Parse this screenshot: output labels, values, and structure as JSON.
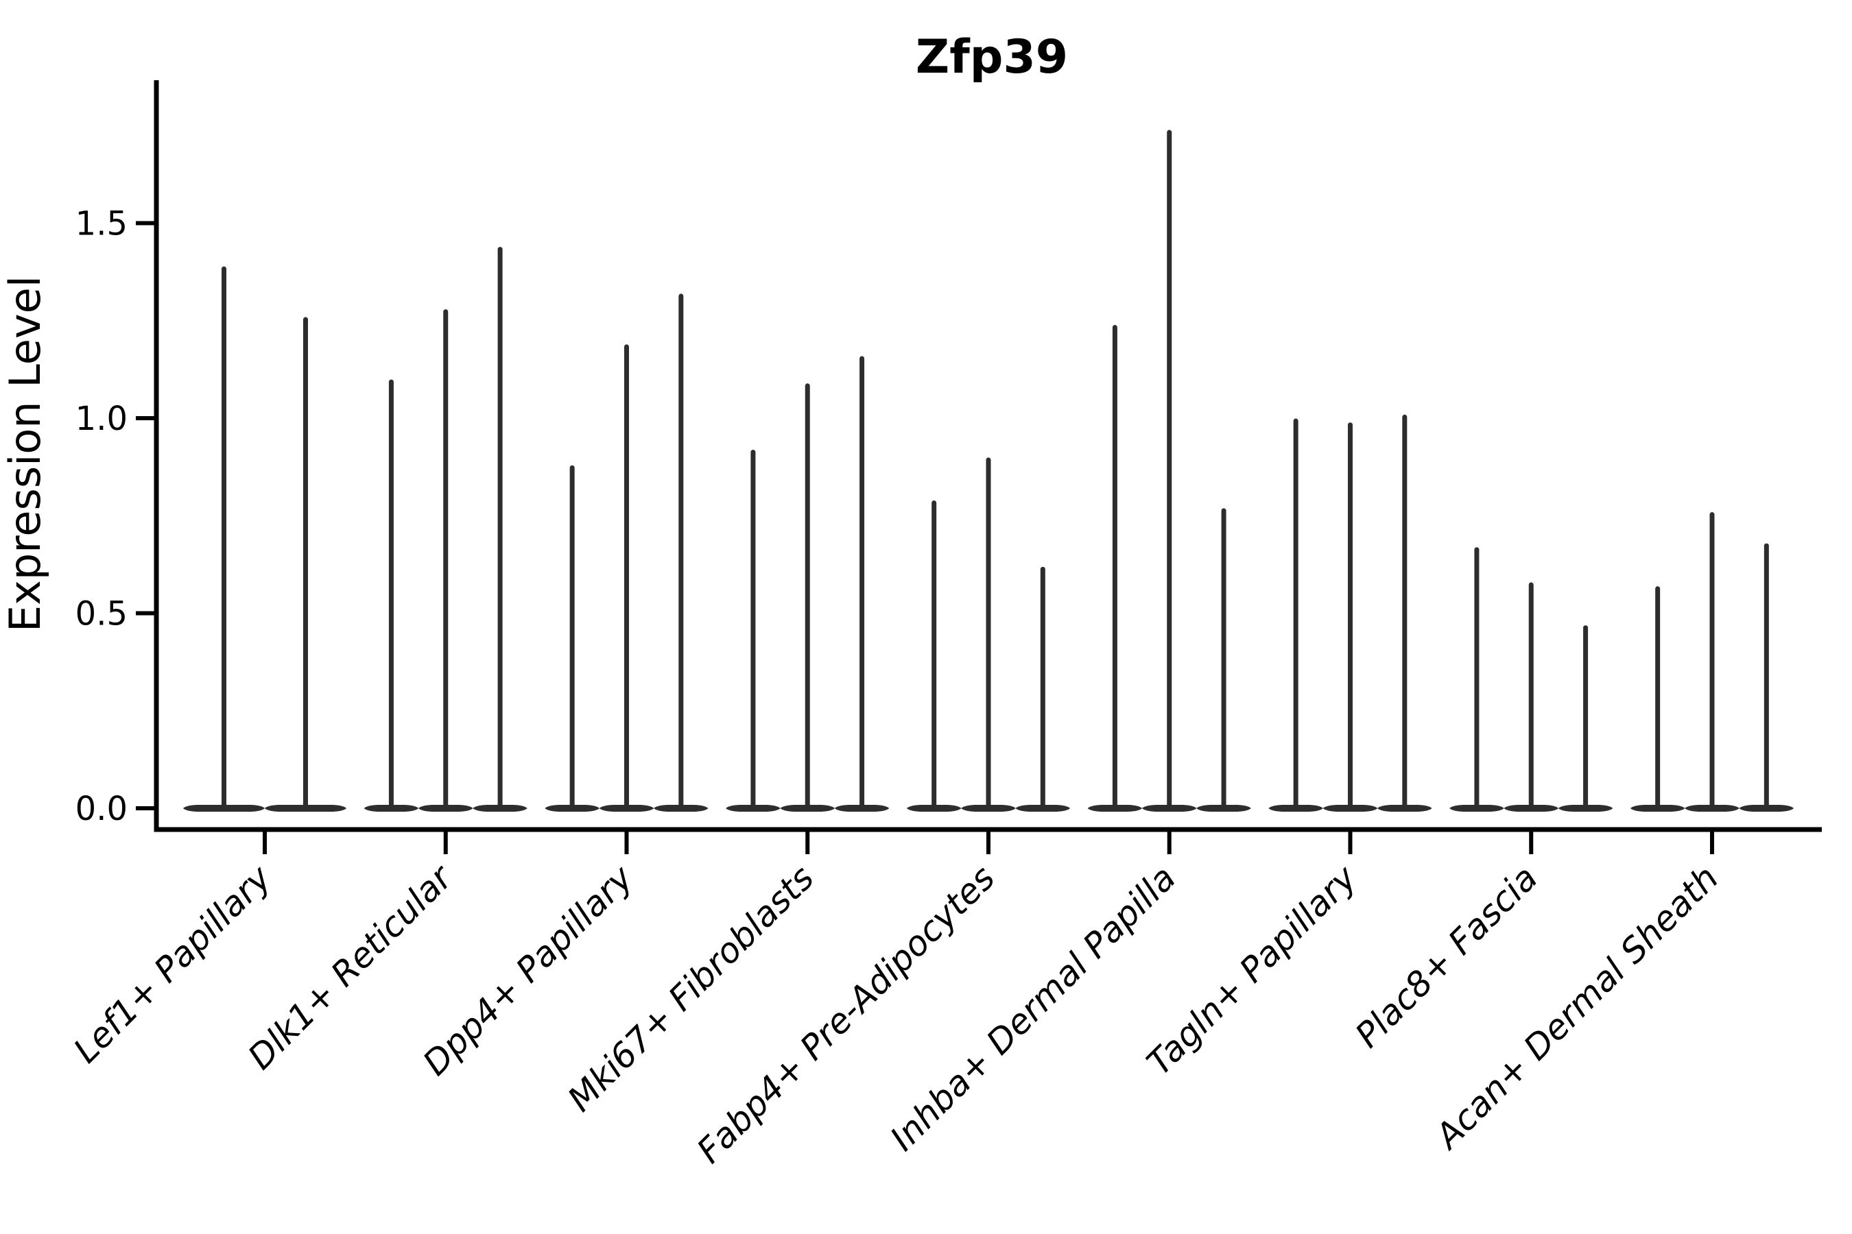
{
  "figure": {
    "title": "Zfp39",
    "y_axis_label": "Expression Level"
  },
  "chart_data": {
    "type": "violin",
    "title": "Zfp39",
    "xlabel": "",
    "ylabel": "Expression Level",
    "ylim": [
      0,
      1.87
    ],
    "yticks": [
      0.0,
      0.5,
      1.0,
      1.5
    ],
    "ytick_labels": [
      "0.0",
      "0.5",
      "1.0",
      "1.5"
    ],
    "grid": false,
    "legend_position": "none",
    "x_tick_label_rotation_deg": 45,
    "description": "Needle-style violin plot: each violin has its density bulk at expression 0 (flat wide base) and a thin spike rising to its maximum expression value.",
    "categories": [
      "Lef1+ Papillary",
      "Dlk1+ Reticular",
      "Dpp4+ Papillary",
      "Mki67+ Fibroblasts",
      "Fabp4+ Pre-Adipocytes",
      "Inhba+ Dermal Papilla",
      "Tagln+ Papillary",
      "Plac8+ Fascia",
      "Acan+ Dermal Sheath"
    ],
    "groups": [
      {
        "category": "Lef1+ Papillary",
        "violin_maxima": [
          1.39,
          1.26
        ]
      },
      {
        "category": "Dlk1+ Reticular",
        "violin_maxima": [
          1.1,
          1.28,
          1.44
        ]
      },
      {
        "category": "Dpp4+ Papillary",
        "violin_maxima": [
          0.88,
          1.19,
          1.32
        ]
      },
      {
        "category": "Mki67+ Fibroblasts",
        "violin_maxima": [
          0.92,
          1.09,
          1.16
        ]
      },
      {
        "category": "Fabp4+ Pre-Adipocytes",
        "violin_maxima": [
          0.79,
          0.9,
          0.62
        ]
      },
      {
        "category": "Inhba+ Dermal Papilla",
        "violin_maxima": [
          1.24,
          1.74,
          0.77
        ]
      },
      {
        "category": "Tagln+ Papillary",
        "violin_maxima": [
          1.0,
          0.99,
          1.01
        ]
      },
      {
        "category": "Plac8+ Fascia",
        "violin_maxima": [
          0.67,
          0.58,
          0.47
        ]
      },
      {
        "category": "Acan+ Dermal Sheath",
        "violin_maxima": [
          0.57,
          0.76,
          0.68
        ]
      }
    ]
  },
  "colors": {
    "violin": "#2d2d2d",
    "axis": "#000000",
    "text": "#000000",
    "background": "#ffffff"
  }
}
